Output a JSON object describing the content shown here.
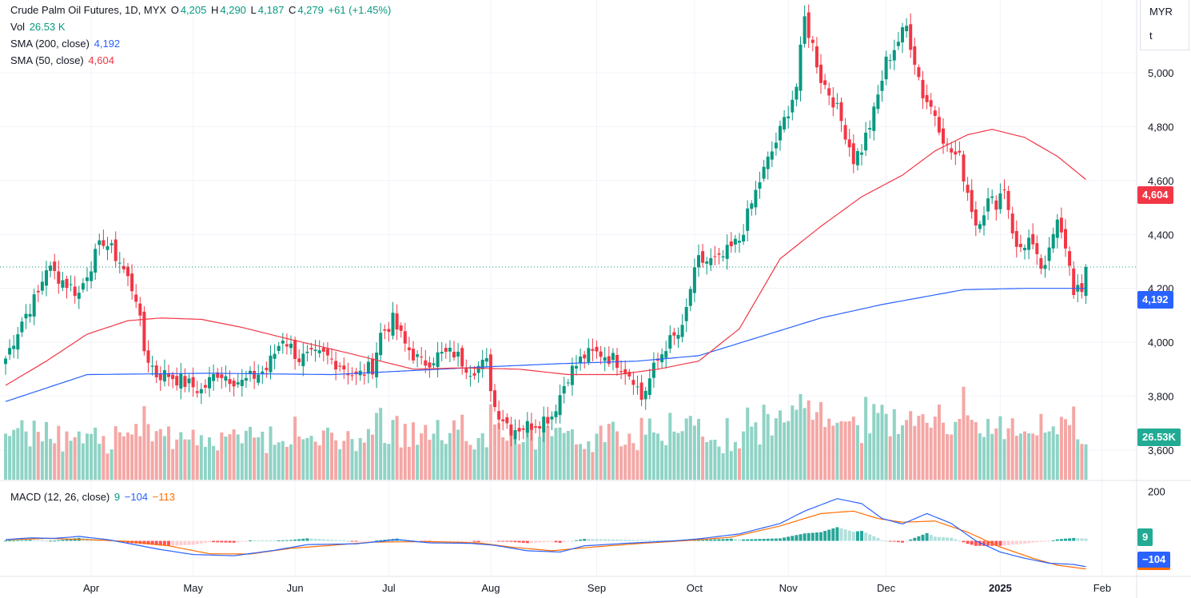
{
  "header": {
    "symbol": "Crude Palm Oil Futures, 1D, MYX",
    "o_label": "O",
    "o_value": "4,205",
    "h_label": "H",
    "h_value": "4,290",
    "l_label": "L",
    "l_value": "4,187",
    "c_label": "C",
    "c_value": "4,279",
    "change": "+61 (+1.45%)"
  },
  "indicators": {
    "vol_label": "Vol",
    "vol_value": "26.53 K",
    "sma200_label": "SMA (200, close)",
    "sma200_value": "4,192",
    "sma50_label": "SMA (50, close)",
    "sma50_value": "4,604",
    "macd_label": "MACD (12, 26, close)",
    "macd_hist": "9",
    "macd_line": "−104",
    "macd_signal": "−113"
  },
  "units": {
    "currency": "MYR",
    "unit": "t"
  },
  "price_labels": {
    "sma50": "4,604",
    "sma200": "4,192",
    "volume": "26.53K",
    "macd_hist": "9",
    "macd_line": "−104"
  },
  "colors": {
    "up": "#089981",
    "down": "#f23645",
    "sma200": "#2962ff",
    "sma50": "#f23645",
    "signal": "#ff6d00",
    "vol_up": "#8fd3c5",
    "vol_down": "#f4a7a5"
  },
  "chart_data": {
    "type": "candlestick",
    "title": "Crude Palm Oil Futures, 1D, MYX",
    "price_axis": {
      "ticks": [
        3600,
        3800,
        4000,
        4200,
        4400,
        4600,
        4800,
        5000
      ],
      "tick_labels": [
        "3,600",
        "3,800",
        "4,000",
        "4,200",
        "4,400",
        "4,600",
        "4,800",
        "5,000"
      ],
      "range": [
        3490,
        5270
      ]
    },
    "macd_axis": {
      "ticks": [
        200
      ],
      "tick_labels": [
        "200"
      ],
      "range": [
        -140,
        240
      ]
    },
    "x_ticks": [
      {
        "label": "Apr",
        "i": 21,
        "bold": false
      },
      {
        "label": "May",
        "i": 46,
        "bold": false
      },
      {
        "label": "Jun",
        "i": 71,
        "bold": false
      },
      {
        "label": "Jul",
        "i": 94,
        "bold": false
      },
      {
        "label": "Aug",
        "i": 119,
        "bold": false
      },
      {
        "label": "Sep",
        "i": 145,
        "bold": false
      },
      {
        "label": "Oct",
        "i": 169,
        "bold": false
      },
      {
        "label": "Nov",
        "i": 192,
        "bold": false
      },
      {
        "label": "Dec",
        "i": 216,
        "bold": false
      },
      {
        "label": "2025",
        "i": 244,
        "bold": true
      },
      {
        "label": "Feb",
        "i": 269,
        "bold": false
      }
    ],
    "n_bars": 266,
    "last_close": 4279,
    "close_anchors": [
      [
        0,
        3940
      ],
      [
        4,
        4080
      ],
      [
        8,
        4180
      ],
      [
        10,
        4280
      ],
      [
        14,
        4230
      ],
      [
        18,
        4180
      ],
      [
        20,
        4260
      ],
      [
        24,
        4380
      ],
      [
        28,
        4300
      ],
      [
        32,
        4170
      ],
      [
        34,
        3970
      ],
      [
        37,
        3880
      ],
      [
        40,
        3880
      ],
      [
        44,
        3850
      ],
      [
        48,
        3820
      ],
      [
        52,
        3890
      ],
      [
        58,
        3850
      ],
      [
        64,
        3900
      ],
      [
        68,
        4020
      ],
      [
        72,
        3940
      ],
      [
        78,
        3950
      ],
      [
        82,
        3920
      ],
      [
        86,
        3870
      ],
      [
        90,
        3910
      ],
      [
        92,
        4030
      ],
      [
        95,
        4080
      ],
      [
        98,
        3990
      ],
      [
        102,
        3920
      ],
      [
        106,
        3950
      ],
      [
        110,
        3960
      ],
      [
        114,
        3900
      ],
      [
        118,
        3920
      ],
      [
        120,
        3760
      ],
      [
        124,
        3680
      ],
      [
        128,
        3690
      ],
      [
        134,
        3730
      ],
      [
        138,
        3880
      ],
      [
        142,
        3950
      ],
      [
        146,
        3960
      ],
      [
        150,
        3930
      ],
      [
        154,
        3870
      ],
      [
        156,
        3790
      ],
      [
        159,
        3900
      ],
      [
        162,
        3990
      ],
      [
        166,
        4040
      ],
      [
        168,
        4200
      ],
      [
        170,
        4300
      ],
      [
        175,
        4300
      ],
      [
        180,
        4380
      ],
      [
        185,
        4600
      ],
      [
        190,
        4780
      ],
      [
        194,
        4950
      ],
      [
        196,
        5200
      ],
      [
        198,
        5100
      ],
      [
        200,
        4980
      ],
      [
        203,
        4900
      ],
      [
        206,
        4780
      ],
      [
        208,
        4680
      ],
      [
        210,
        4720
      ],
      [
        213,
        4850
      ],
      [
        216,
        5040
      ],
      [
        219,
        5120
      ],
      [
        221,
        5170
      ],
      [
        223,
        5050
      ],
      [
        225,
        4920
      ],
      [
        228,
        4850
      ],
      [
        231,
        4720
      ],
      [
        234,
        4680
      ],
      [
        236,
        4560
      ],
      [
        238,
        4440
      ],
      [
        241,
        4520
      ],
      [
        243,
        4520
      ],
      [
        245,
        4580
      ],
      [
        248,
        4340
      ],
      [
        251,
        4380
      ],
      [
        253,
        4300
      ],
      [
        255,
        4260
      ],
      [
        258,
        4480
      ],
      [
        260,
        4370
      ],
      [
        262,
        4170
      ],
      [
        264,
        4200
      ],
      [
        265,
        4279
      ]
    ],
    "sma200_anchors": [
      [
        0,
        3780
      ],
      [
        20,
        3880
      ],
      [
        50,
        3885
      ],
      [
        80,
        3880
      ],
      [
        100,
        3895
      ],
      [
        120,
        3910
      ],
      [
        135,
        3920
      ],
      [
        155,
        3930
      ],
      [
        170,
        3950
      ],
      [
        185,
        4020
      ],
      [
        200,
        4090
      ],
      [
        215,
        4140
      ],
      [
        235,
        4195
      ],
      [
        250,
        4200
      ],
      [
        265,
        4200
      ]
    ],
    "sma50_anchors": [
      [
        0,
        3840
      ],
      [
        10,
        3930
      ],
      [
        20,
        4030
      ],
      [
        30,
        4080
      ],
      [
        38,
        4090
      ],
      [
        48,
        4085
      ],
      [
        58,
        4055
      ],
      [
        70,
        4010
      ],
      [
        84,
        3960
      ],
      [
        100,
        3900
      ],
      [
        112,
        3905
      ],
      [
        126,
        3900
      ],
      [
        138,
        3880
      ],
      [
        150,
        3880
      ],
      [
        160,
        3900
      ],
      [
        170,
        3930
      ],
      [
        180,
        4050
      ],
      [
        190,
        4310
      ],
      [
        200,
        4430
      ],
      [
        210,
        4540
      ],
      [
        220,
        4620
      ],
      [
        228,
        4710
      ],
      [
        236,
        4770
      ],
      [
        242,
        4790
      ],
      [
        250,
        4760
      ],
      [
        258,
        4690
      ],
      [
        265,
        4604
      ]
    ],
    "volume_range": [
      0,
      90
    ],
    "last_volume_k": 26.53,
    "macd_line_anchors": [
      [
        0,
        5
      ],
      [
        6,
        12
      ],
      [
        12,
        10
      ],
      [
        18,
        18
      ],
      [
        25,
        5
      ],
      [
        30,
        -10
      ],
      [
        38,
        -35
      ],
      [
        46,
        -55
      ],
      [
        56,
        -60
      ],
      [
        66,
        -38
      ],
      [
        74,
        -15
      ],
      [
        86,
        -12
      ],
      [
        96,
        5
      ],
      [
        104,
        -8
      ],
      [
        114,
        -10
      ],
      [
        120,
        -18
      ],
      [
        128,
        -40
      ],
      [
        136,
        -45
      ],
      [
        142,
        -20
      ],
      [
        152,
        -10
      ],
      [
        164,
        0
      ],
      [
        170,
        8
      ],
      [
        180,
        28
      ],
      [
        190,
        70
      ],
      [
        196,
        120
      ],
      [
        204,
        170
      ],
      [
        210,
        150
      ],
      [
        215,
        90
      ],
      [
        220,
        68
      ],
      [
        226,
        110
      ],
      [
        232,
        70
      ],
      [
        238,
        0
      ],
      [
        244,
        -45
      ],
      [
        250,
        -70
      ],
      [
        256,
        -90
      ],
      [
        262,
        -95
      ],
      [
        265,
        -104
      ]
    ],
    "macd_signal_anchors": [
      [
        0,
        4
      ],
      [
        10,
        10
      ],
      [
        20,
        5
      ],
      [
        30,
        -2
      ],
      [
        40,
        -20
      ],
      [
        50,
        -52
      ],
      [
        60,
        -53
      ],
      [
        70,
        -30
      ],
      [
        80,
        -18
      ],
      [
        90,
        -5
      ],
      [
        104,
        -3
      ],
      [
        116,
        -8
      ],
      [
        124,
        -25
      ],
      [
        134,
        -40
      ],
      [
        144,
        -25
      ],
      [
        156,
        -10
      ],
      [
        168,
        2
      ],
      [
        178,
        15
      ],
      [
        190,
        60
      ],
      [
        200,
        110
      ],
      [
        208,
        120
      ],
      [
        214,
        90
      ],
      [
        220,
        75
      ],
      [
        228,
        80
      ],
      [
        236,
        35
      ],
      [
        244,
        -25
      ],
      [
        252,
        -70
      ],
      [
        258,
        -98
      ],
      [
        265,
        -113
      ]
    ]
  }
}
